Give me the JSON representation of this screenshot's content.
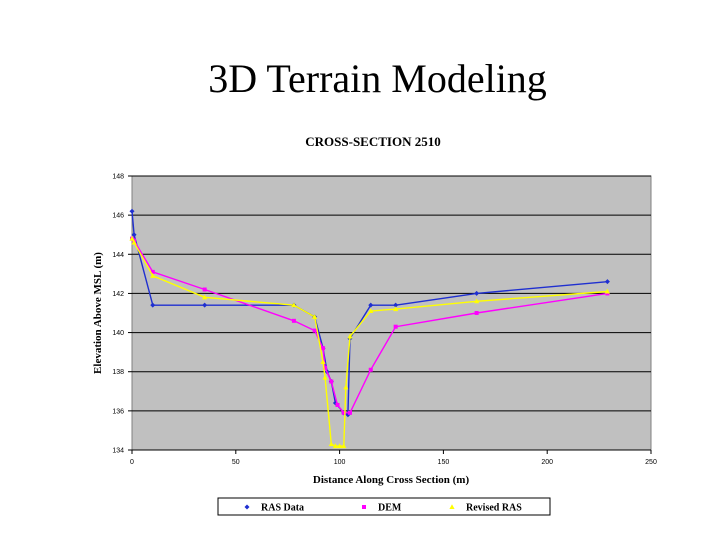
{
  "slide": {
    "title": "3D Terrain Modeling"
  },
  "chart_data": {
    "type": "line",
    "title": "CROSS-SECTION 2510",
    "xlabel": "Distance Along Cross Section (m)",
    "ylabel": "Elevation Above MSL (m)",
    "xlim": [
      0,
      250
    ],
    "ylim": [
      134,
      148
    ],
    "xticks": [
      "0",
      "50",
      "100",
      "150",
      "200",
      "250"
    ],
    "yticks": [
      "134",
      "136",
      "138",
      "140",
      "142",
      "144",
      "146",
      "148"
    ],
    "grid": "horizontal",
    "legend_position": "bottom",
    "plot_background": "#c0c0c0",
    "series": [
      {
        "name": "RAS Data",
        "color": "#1f2fd0",
        "marker": "diamond",
        "points": [
          [
            0,
            146.2
          ],
          [
            1,
            145
          ],
          [
            10,
            141.4
          ],
          [
            35,
            141.4
          ],
          [
            78,
            141.4
          ],
          [
            88,
            140.8
          ],
          [
            92,
            139.2
          ],
          [
            94,
            138
          ],
          [
            96,
            137.5
          ],
          [
            98,
            136.4
          ],
          [
            102,
            135.9
          ],
          [
            104,
            135.8
          ],
          [
            105,
            139.7
          ],
          [
            115,
            141.4
          ],
          [
            127,
            141.4
          ],
          [
            166,
            142
          ],
          [
            229,
            142.6
          ]
        ]
      },
      {
        "name": "DEM",
        "color": "#ff00ff",
        "marker": "square",
        "points": [
          [
            0,
            144.8
          ],
          [
            1,
            144.7
          ],
          [
            10,
            143.1
          ],
          [
            35,
            142.2
          ],
          [
            78,
            140.6
          ],
          [
            88,
            140.1
          ],
          [
            92,
            139.2
          ],
          [
            93,
            138.2
          ],
          [
            96,
            137.5
          ],
          [
            99,
            136.3
          ],
          [
            102,
            135.9
          ],
          [
            105,
            135.9
          ],
          [
            115,
            138.1
          ],
          [
            127,
            140.3
          ],
          [
            166,
            141
          ],
          [
            229,
            142
          ]
        ]
      },
      {
        "name": "Revised RAS",
        "color": "#ffff00",
        "marker": "triangle",
        "points": [
          [
            0,
            144.8
          ],
          [
            1,
            144.6
          ],
          [
            10,
            142.9
          ],
          [
            35,
            141.8
          ],
          [
            78,
            141.4
          ],
          [
            88,
            140.8
          ],
          [
            92,
            138.5
          ],
          [
            93,
            137.7
          ],
          [
            96,
            134.3
          ],
          [
            98,
            134.2
          ],
          [
            100,
            134.2
          ],
          [
            102,
            134.2
          ],
          [
            103,
            137.2
          ],
          [
            105,
            139.8
          ],
          [
            115,
            141.1
          ],
          [
            127,
            141.2
          ],
          [
            166,
            141.6
          ],
          [
            229,
            142.1
          ]
        ]
      }
    ]
  }
}
